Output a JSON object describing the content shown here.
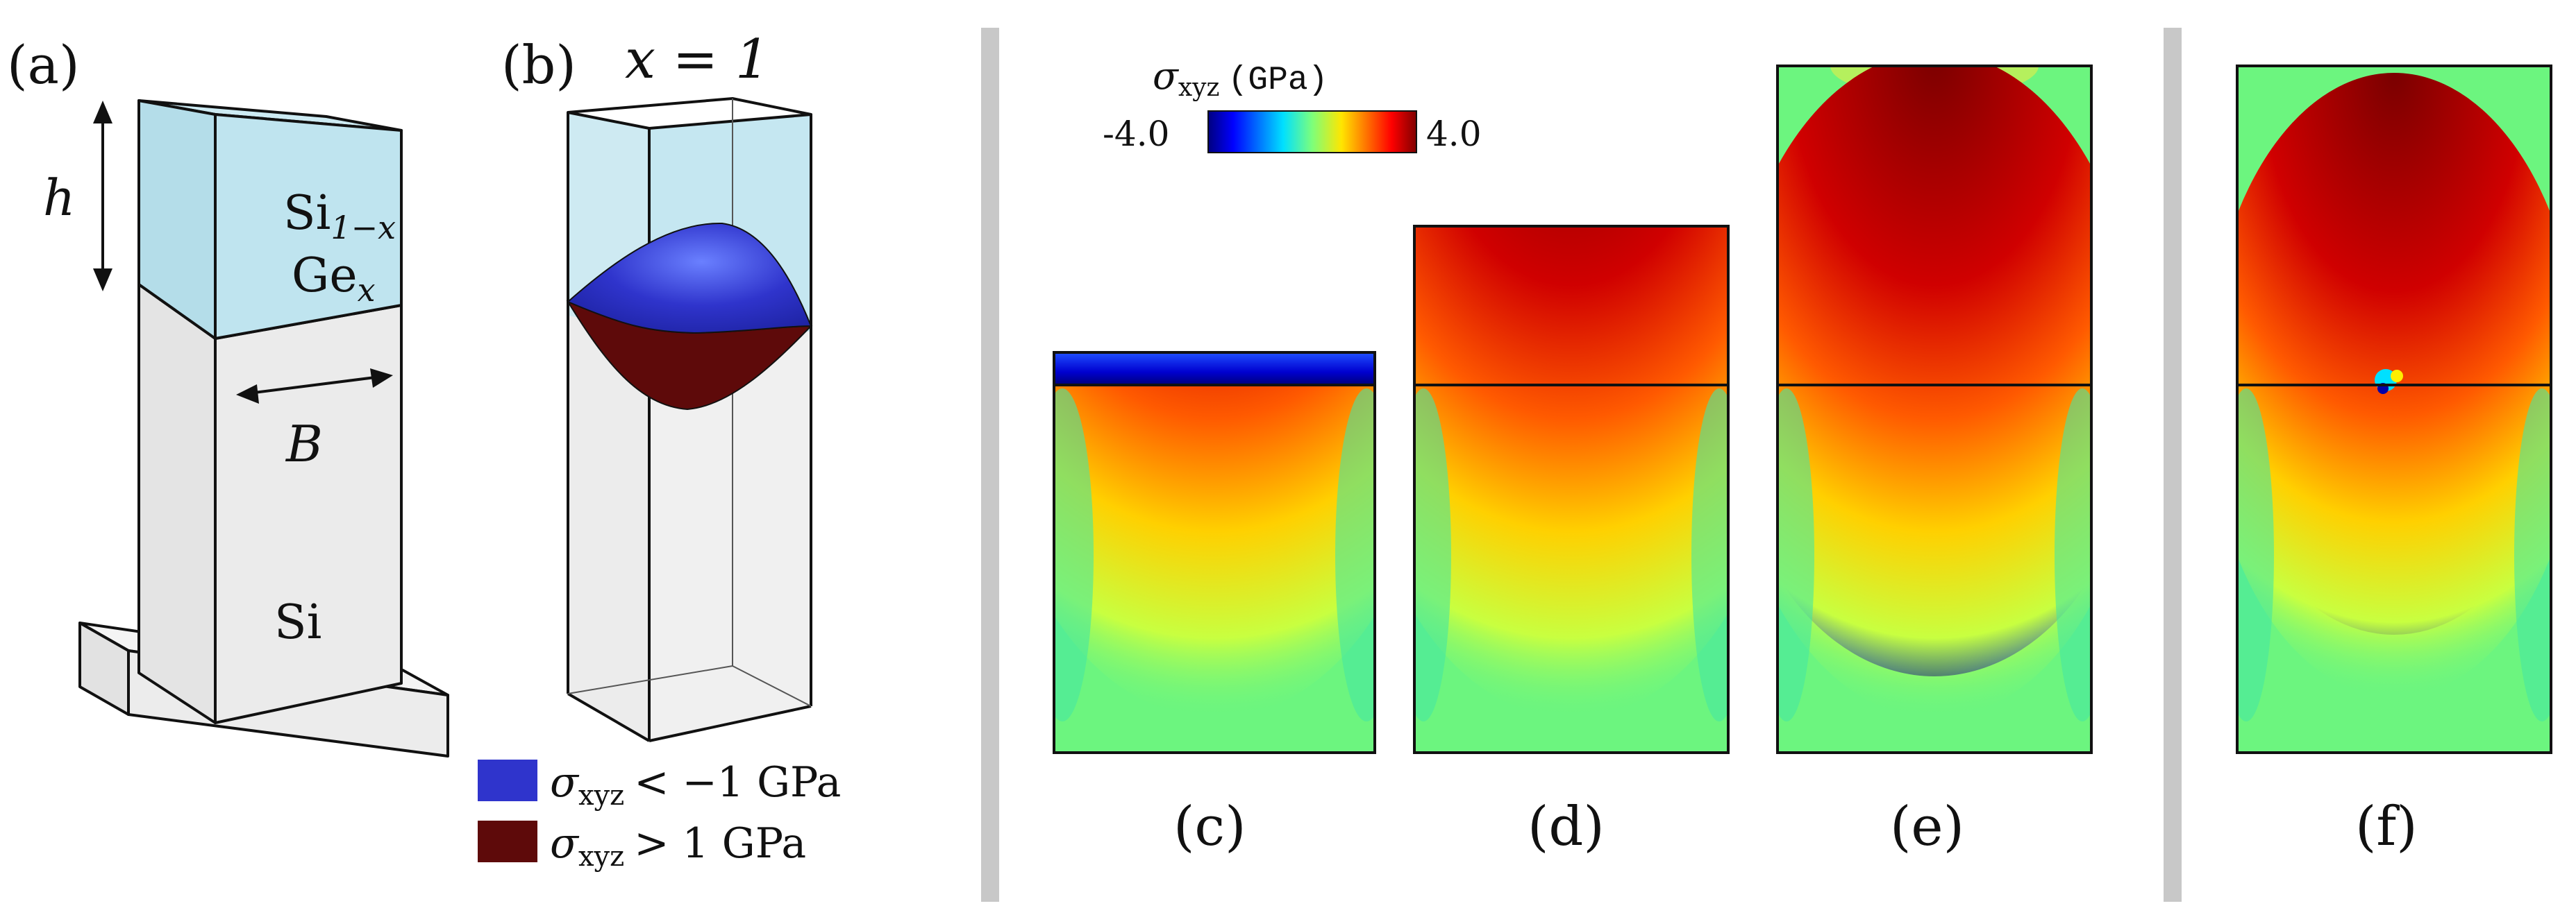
{
  "panels": {
    "a": {
      "label": "(a)",
      "top_layer": {
        "base": "Si",
        "sub": "1−x",
        "second_base": "Ge",
        "second_sub": "x"
      },
      "height_symbol": "h",
      "width_symbol": "B",
      "pillar_material": "Si"
    },
    "b": {
      "label": "(b)",
      "title": "x = 1",
      "legend": [
        {
          "symbol": "σ",
          "sub": "xyz",
          "relation": "< −1 GPa",
          "color": "#2f34cc"
        },
        {
          "symbol": "σ",
          "sub": "xyz",
          "relation": "> 1 GPa",
          "color": "#5e0a0a"
        }
      ]
    },
    "c": {
      "label": "(c)"
    },
    "d": {
      "label": "(d)"
    },
    "e": {
      "label": "(e)"
    },
    "f": {
      "label": "(f)"
    }
  },
  "colorbar": {
    "symbol": "σ",
    "sub": "xyz",
    "unit": "(GPa)",
    "min_label": "-4.0",
    "max_label": "4.0",
    "colormap": "jet",
    "range": [
      -4.0,
      4.0
    ]
  },
  "colors": {
    "sige_face": "#bfe4ef",
    "si_face": "#ebebeb",
    "field_background": "#6cf57f",
    "separator": "#c8c8c8",
    "compressive": "#2f34cc",
    "tensile": "#5e0a0a"
  }
}
